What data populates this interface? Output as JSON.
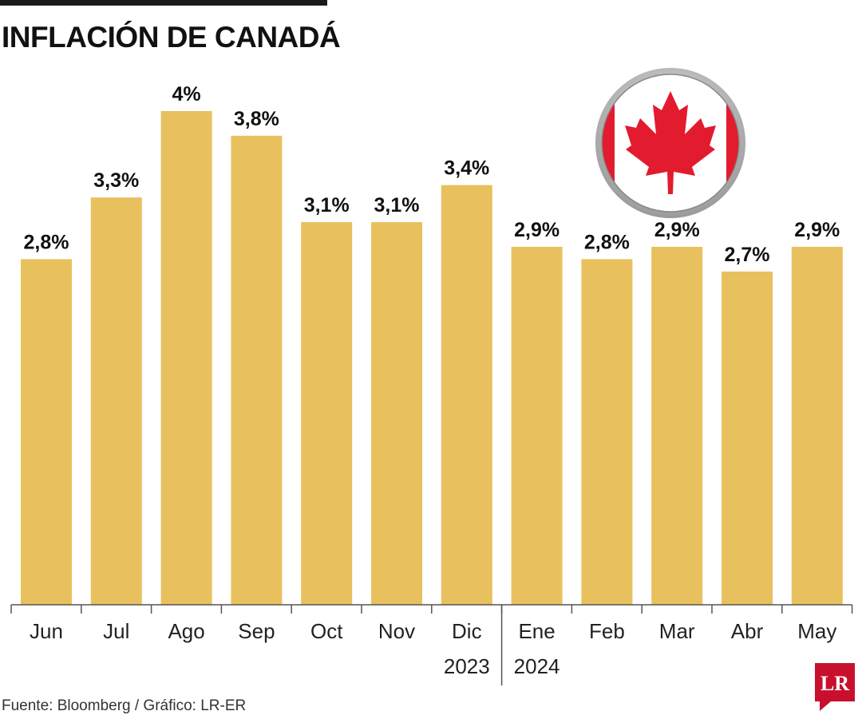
{
  "header": {
    "title": "INFLACIÓN DE CANADÁ"
  },
  "footer": {
    "source": "Fuente: Bloomberg / Gráfico: LR-ER",
    "logo_text": "LR"
  },
  "colors": {
    "bar": "#E8C15E",
    "flag_red": "#E31B2F",
    "logo_red": "#C8102E"
  },
  "chart_data": {
    "type": "bar",
    "title": "INFLACIÓN DE CANADÁ",
    "xlabel": "",
    "ylabel": "",
    "ylim": [
      0,
      4
    ],
    "grid": false,
    "categories": [
      "Jun",
      "Jul",
      "Ago",
      "Sep",
      "Oct",
      "Nov",
      "Dic",
      "Ene",
      "Feb",
      "Mar",
      "Abr",
      "May"
    ],
    "values": [
      2.8,
      3.3,
      4.0,
      3.8,
      3.1,
      3.1,
      3.4,
      2.9,
      2.8,
      2.9,
      2.7,
      2.9
    ],
    "value_labels": [
      "2,8%",
      "3,3%",
      "4%",
      "3,8%",
      "3,1%",
      "3,1%",
      "3,4%",
      "2,9%",
      "2,8%",
      "2,9%",
      "2,7%",
      "2,9%"
    ],
    "year_groups": [
      {
        "label": "2023",
        "under_category": "Dic"
      },
      {
        "label": "2024",
        "under_category": "Ene"
      }
    ]
  }
}
